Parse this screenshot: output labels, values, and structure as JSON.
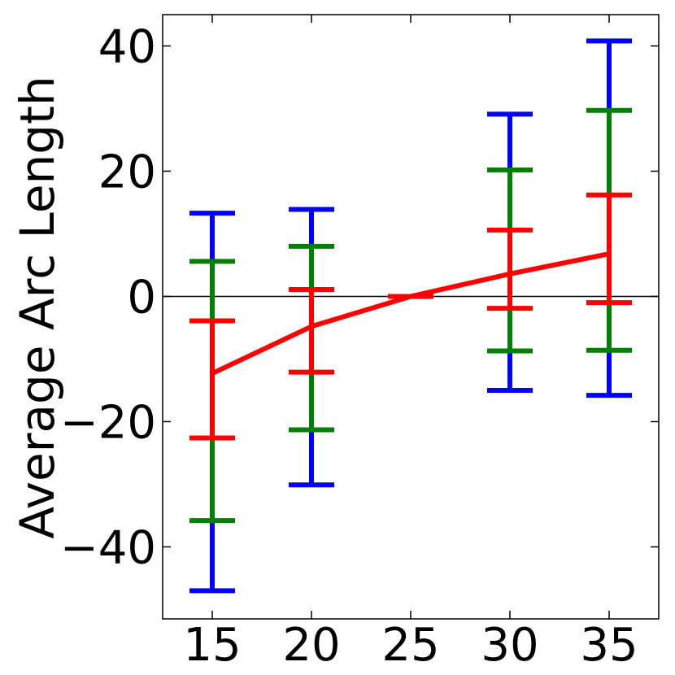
{
  "chart_data": {
    "type": "line",
    "title": "",
    "xlabel": "",
    "ylabel": "Average Arc Length",
    "xlim": [
      12.5,
      37.5
    ],
    "ylim": [
      -51.5,
      45
    ],
    "xticks": [
      15,
      20,
      25,
      30,
      35
    ],
    "yticks": [
      40,
      20,
      0,
      -20,
      -40
    ],
    "ytick_labels": [
      "40",
      "20",
      "0",
      "−20",
      "−40"
    ],
    "zero_line": true,
    "grid": false,
    "legend": "none",
    "mean_line": {
      "color": "#ff0000",
      "x": [
        15,
        20,
        25,
        30,
        35
      ],
      "y": [
        -12.3,
        -4.8,
        0.0,
        3.6,
        6.8
      ]
    },
    "error_bars": [
      {
        "color": "#0000ff",
        "x": [
          15,
          20,
          30,
          35
        ],
        "low": [
          -47.0,
          -30.1,
          -15.0,
          -15.8
        ],
        "high": [
          13.3,
          13.9,
          29.1,
          40.8
        ]
      },
      {
        "color": "#008000",
        "x": [
          15,
          20,
          30,
          35
        ],
        "low": [
          -35.8,
          -21.3,
          -8.7,
          -8.6
        ],
        "high": [
          5.6,
          8.0,
          20.2,
          29.7
        ]
      },
      {
        "color": "#ff0000",
        "x": [
          15,
          20,
          25,
          30,
          35
        ],
        "low": [
          -22.6,
          -12.1,
          0.0,
          -1.9,
          -1.0
        ],
        "high": [
          -3.9,
          1.1,
          0.0,
          10.6,
          16.2
        ]
      }
    ]
  }
}
